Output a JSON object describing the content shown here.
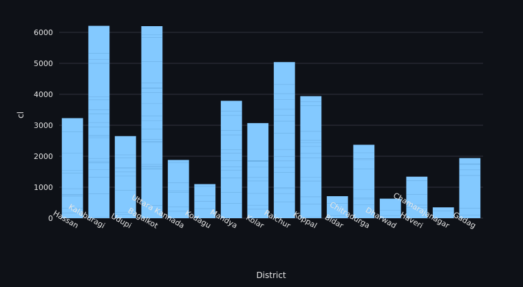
{
  "chart_data": {
    "type": "bar",
    "xlabel": "District",
    "ylabel": "cl",
    "ylim": [
      0,
      6500
    ],
    "yticks": [
      0,
      1000,
      2000,
      3000,
      4000,
      5000,
      6000
    ],
    "grid": true,
    "categories": [
      "Hassan",
      "Kalaburagi",
      "Udupi",
      "Bagalkot",
      "Uttara Kannada",
      "Kodagu",
      "Mandya",
      "Kolar",
      "Raichur",
      "Koppal",
      "Bidar",
      "Chitradurga",
      "Dharwad",
      "Haveri",
      "Chamarajanagar",
      "Gadag"
    ],
    "values": [
      3230,
      6210,
      2650,
      6200,
      1880,
      1100,
      3790,
      3070,
      5040,
      3940,
      710,
      2370,
      630,
      1340,
      350,
      1940
    ],
    "bar_color": "#83c9ff",
    "segment_line_color": "#5a9bd0",
    "background": "#0e1117",
    "grid_color": "#31333f",
    "text_color": "#e6e6e6"
  }
}
